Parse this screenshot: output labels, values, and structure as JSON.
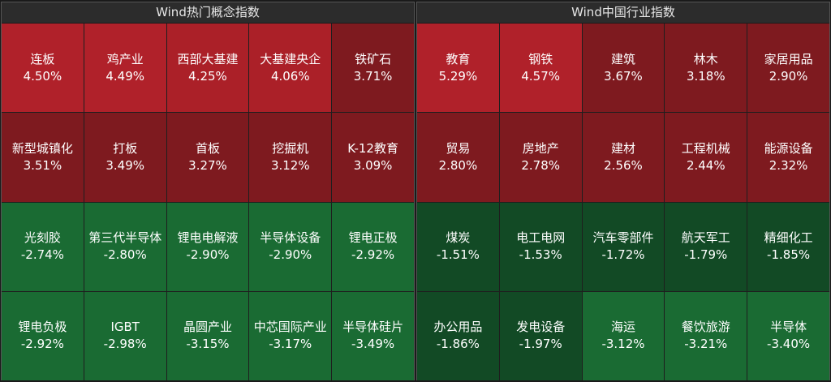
{
  "left_panel": {
    "title": "Wind热门概念指数",
    "cells": [
      {
        "name": "连板",
        "value": "4.50%",
        "color": "#b0212a"
      },
      {
        "name": "鸡产业",
        "value": "4.49%",
        "color": "#b0212a"
      },
      {
        "name": "西部大基建",
        "value": "4.25%",
        "color": "#ab2028"
      },
      {
        "name": "大基建央企",
        "value": "4.06%",
        "color": "#ab2028"
      },
      {
        "name": "铁矿石",
        "value": "3.71%",
        "color": "#7e1a1f"
      },
      {
        "name": "新型城镇化",
        "value": "3.51%",
        "color": "#7e1a1f"
      },
      {
        "name": "打板",
        "value": "3.49%",
        "color": "#7e1a1f"
      },
      {
        "name": "首板",
        "value": "3.27%",
        "color": "#7e1a1f"
      },
      {
        "name": "挖掘机",
        "value": "3.12%",
        "color": "#7e1a1f"
      },
      {
        "name": "K-12教育",
        "value": "3.09%",
        "color": "#7e1a1f"
      },
      {
        "name": "光刻胶",
        "value": "-2.74%",
        "color": "#1a6b33"
      },
      {
        "name": "第三代半导体",
        "value": "-2.80%",
        "color": "#1a6b33"
      },
      {
        "name": "锂电电解液",
        "value": "-2.90%",
        "color": "#1a6b33"
      },
      {
        "name": "半导体设备",
        "value": "-2.90%",
        "color": "#1a6b33"
      },
      {
        "name": "锂电正极",
        "value": "-2.92%",
        "color": "#1a6b33"
      },
      {
        "name": "锂电负极",
        "value": "-2.92%",
        "color": "#1a6b33"
      },
      {
        "name": "IGBT",
        "value": "-2.98%",
        "color": "#1a6b33"
      },
      {
        "name": "晶圆产业",
        "value": "-3.15%",
        "color": "#1a6b33"
      },
      {
        "name": "中芯国际产业",
        "value": "-3.17%",
        "color": "#1a6b33"
      },
      {
        "name": "半导体硅片",
        "value": "-3.49%",
        "color": "#1a6b33"
      }
    ]
  },
  "right_panel": {
    "title": "Wind中国行业指数",
    "cells": [
      {
        "name": "教育",
        "value": "5.29%",
        "color": "#b0212a"
      },
      {
        "name": "钢铁",
        "value": "4.57%",
        "color": "#b0212a"
      },
      {
        "name": "建筑",
        "value": "3.67%",
        "color": "#7e1a1f"
      },
      {
        "name": "林木",
        "value": "3.18%",
        "color": "#7e1a1f"
      },
      {
        "name": "家居用品",
        "value": "2.90%",
        "color": "#7e1a1f"
      },
      {
        "name": "贸易",
        "value": "2.80%",
        "color": "#7e1a1f"
      },
      {
        "name": "房地产",
        "value": "2.78%",
        "color": "#7e1a1f"
      },
      {
        "name": "建材",
        "value": "2.56%",
        "color": "#7e1a1f"
      },
      {
        "name": "工程机械",
        "value": "2.44%",
        "color": "#7e1a1f"
      },
      {
        "name": "能源设备",
        "value": "2.32%",
        "color": "#7e1a1f"
      },
      {
        "name": "煤炭",
        "value": "-1.51%",
        "color": "#124a25"
      },
      {
        "name": "电工电网",
        "value": "-1.53%",
        "color": "#124a25"
      },
      {
        "name": "汽车零部件",
        "value": "-1.72%",
        "color": "#124a25"
      },
      {
        "name": "航天军工",
        "value": "-1.79%",
        "color": "#124a25"
      },
      {
        "name": "精细化工",
        "value": "-1.85%",
        "color": "#124a25"
      },
      {
        "name": "办公用品",
        "value": "-1.86%",
        "color": "#124a25"
      },
      {
        "name": "发电设备",
        "value": "-1.97%",
        "color": "#124a25"
      },
      {
        "name": "海运",
        "value": "-3.12%",
        "color": "#1a6b33"
      },
      {
        "name": "餐饮旅游",
        "value": "-3.21%",
        "color": "#1a6b33"
      },
      {
        "name": "半导体",
        "value": "-3.40%",
        "color": "#1a6b33"
      }
    ]
  }
}
